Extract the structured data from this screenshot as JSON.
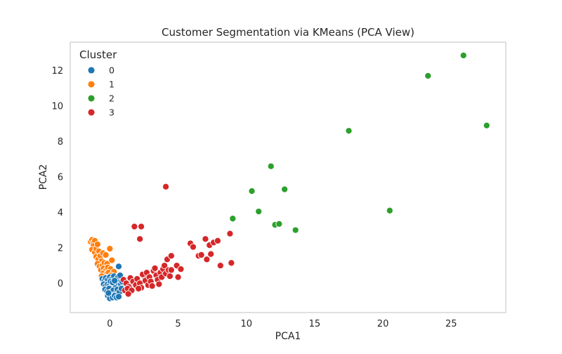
{
  "chart_data": {
    "type": "scatter",
    "title": "Customer Segmentation via KMeans (PCA View)",
    "xlabel": "PCA1",
    "ylabel": "PCA2",
    "xlim": [
      -2.9,
      29.0
    ],
    "ylim": [
      -1.65,
      13.6
    ],
    "xticks": [
      0,
      5,
      10,
      15,
      20,
      25
    ],
    "yticks": [
      0,
      2,
      4,
      6,
      8,
      10,
      12
    ],
    "grid": false,
    "legend": {
      "title": "Cluster",
      "position": "top-left",
      "entries": [
        "0",
        "1",
        "2",
        "3"
      ]
    },
    "colors": {
      "0": "#1f77b4",
      "1": "#ff7f0e",
      "2": "#2ca02c",
      "3": "#d62728"
    },
    "series": [
      {
        "name": "1",
        "color": "#ff7f0e",
        "points": [
          [
            -1.4,
            2.35
          ],
          [
            -1.3,
            2.45
          ],
          [
            -1.2,
            2.3
          ],
          [
            -1.1,
            2.4
          ],
          [
            -1.2,
            2.1
          ],
          [
            -1.3,
            1.9
          ],
          [
            -1.1,
            1.75
          ],
          [
            -1.0,
            1.95
          ],
          [
            -0.9,
            2.2
          ],
          [
            -0.8,
            1.8
          ],
          [
            -1.0,
            1.5
          ],
          [
            -0.85,
            1.35
          ],
          [
            -0.7,
            1.55
          ],
          [
            -0.6,
            1.25
          ],
          [
            -0.5,
            1.7
          ],
          [
            -0.3,
            1.6
          ],
          [
            0.0,
            1.95
          ],
          [
            -0.9,
            1.1
          ],
          [
            -0.75,
            0.95
          ],
          [
            -0.55,
            1.0
          ],
          [
            -0.4,
            1.15
          ],
          [
            -0.2,
            1.1
          ],
          [
            -0.65,
            0.75
          ],
          [
            -0.45,
            0.85
          ],
          [
            -0.3,
            0.7
          ],
          [
            -0.15,
            0.9
          ],
          [
            0.05,
            0.8
          ],
          [
            -0.5,
            0.55
          ],
          [
            -0.25,
            0.5
          ],
          [
            -0.1,
            0.6
          ],
          [
            0.15,
            1.3
          ],
          [
            0.3,
            0.65
          ],
          [
            -0.35,
            0.35
          ],
          [
            0.1,
            0.45
          ],
          [
            -0.6,
            0.4
          ]
        ]
      },
      {
        "name": "0",
        "color": "#1f77b4",
        "points": [
          [
            -0.55,
            0.25
          ],
          [
            -0.4,
            0.15
          ],
          [
            -0.3,
            0.3
          ],
          [
            -0.15,
            0.2
          ],
          [
            0.0,
            0.35
          ],
          [
            0.15,
            0.25
          ],
          [
            0.3,
            0.4
          ],
          [
            0.45,
            0.2
          ],
          [
            0.6,
            0.35
          ],
          [
            0.75,
            0.45
          ],
          [
            0.65,
            0.95
          ],
          [
            -0.45,
            -0.05
          ],
          [
            -0.3,
            -0.15
          ],
          [
            -0.15,
            -0.05
          ],
          [
            0.0,
            -0.1
          ],
          [
            0.15,
            -0.2
          ],
          [
            0.3,
            -0.05
          ],
          [
            0.45,
            -0.15
          ],
          [
            0.6,
            0.05
          ],
          [
            0.8,
            -0.05
          ],
          [
            0.9,
            0.1
          ],
          [
            -0.35,
            -0.35
          ],
          [
            -0.2,
            -0.45
          ],
          [
            -0.05,
            -0.3
          ],
          [
            0.1,
            -0.5
          ],
          [
            0.25,
            -0.4
          ],
          [
            0.4,
            -0.6
          ],
          [
            0.55,
            -0.35
          ],
          [
            0.7,
            -0.5
          ],
          [
            0.85,
            -0.3
          ],
          [
            -0.15,
            -0.7
          ],
          [
            0.0,
            -0.85
          ],
          [
            0.2,
            -0.8
          ],
          [
            0.35,
            -0.7
          ],
          [
            0.5,
            -0.8
          ],
          [
            0.65,
            -0.75
          ],
          [
            -0.1,
            -0.55
          ],
          [
            0.05,
            0.1
          ],
          [
            0.2,
            0.05
          ],
          [
            0.35,
            0.15
          ]
        ]
      },
      {
        "name": "3",
        "color": "#d62728",
        "points": [
          [
            1.0,
            0.2
          ],
          [
            1.2,
            0.0
          ],
          [
            1.4,
            -0.2
          ],
          [
            1.5,
            0.3
          ],
          [
            1.7,
            0.1
          ],
          [
            1.9,
            -0.1
          ],
          [
            1.1,
            -0.4
          ],
          [
            1.3,
            -0.3
          ],
          [
            1.6,
            -0.4
          ],
          [
            1.35,
            -0.6
          ],
          [
            2.0,
            0.25
          ],
          [
            2.2,
            0.0
          ],
          [
            2.3,
            -0.25
          ],
          [
            2.5,
            0.4
          ],
          [
            2.6,
            0.15
          ],
          [
            2.8,
            -0.1
          ],
          [
            2.1,
            -0.3
          ],
          [
            2.4,
            0.5
          ],
          [
            2.7,
            0.6
          ],
          [
            2.9,
            0.35
          ],
          [
            3.0,
            0.1
          ],
          [
            3.1,
            -0.15
          ],
          [
            3.2,
            0.7
          ],
          [
            3.4,
            0.45
          ],
          [
            3.5,
            0.2
          ],
          [
            3.6,
            -0.05
          ],
          [
            3.3,
            0.85
          ],
          [
            3.7,
            0.6
          ],
          [
            3.8,
            0.35
          ],
          [
            3.9,
            0.8
          ],
          [
            4.0,
            1.0
          ],
          [
            4.1,
            0.55
          ],
          [
            4.3,
            0.75
          ],
          [
            4.4,
            0.4
          ],
          [
            4.5,
            0.75
          ],
          [
            4.2,
            1.35
          ],
          [
            4.5,
            1.55
          ],
          [
            4.9,
            1.0
          ],
          [
            5.0,
            0.35
          ],
          [
            5.2,
            0.8
          ],
          [
            1.8,
            3.2
          ],
          [
            2.3,
            3.2
          ],
          [
            2.2,
            2.5
          ],
          [
            4.1,
            5.45
          ],
          [
            5.9,
            2.25
          ],
          [
            6.1,
            2.05
          ],
          [
            6.5,
            1.55
          ],
          [
            6.7,
            1.6
          ],
          [
            7.0,
            2.5
          ],
          [
            7.1,
            1.35
          ],
          [
            7.3,
            2.15
          ],
          [
            7.4,
            1.65
          ],
          [
            7.6,
            2.3
          ],
          [
            7.9,
            2.4
          ],
          [
            8.1,
            1.0
          ],
          [
            8.8,
            2.8
          ],
          [
            8.9,
            1.15
          ]
        ]
      },
      {
        "name": "2",
        "color": "#2ca02c",
        "points": [
          [
            9.0,
            3.65
          ],
          [
            10.4,
            5.2
          ],
          [
            10.9,
            4.05
          ],
          [
            11.8,
            6.6
          ],
          [
            12.1,
            3.3
          ],
          [
            12.4,
            3.35
          ],
          [
            12.8,
            5.3
          ],
          [
            13.6,
            3.0
          ],
          [
            17.5,
            8.6
          ],
          [
            20.5,
            4.1
          ],
          [
            23.3,
            11.7
          ],
          [
            25.9,
            12.85
          ],
          [
            27.6,
            8.9
          ]
        ]
      }
    ]
  }
}
